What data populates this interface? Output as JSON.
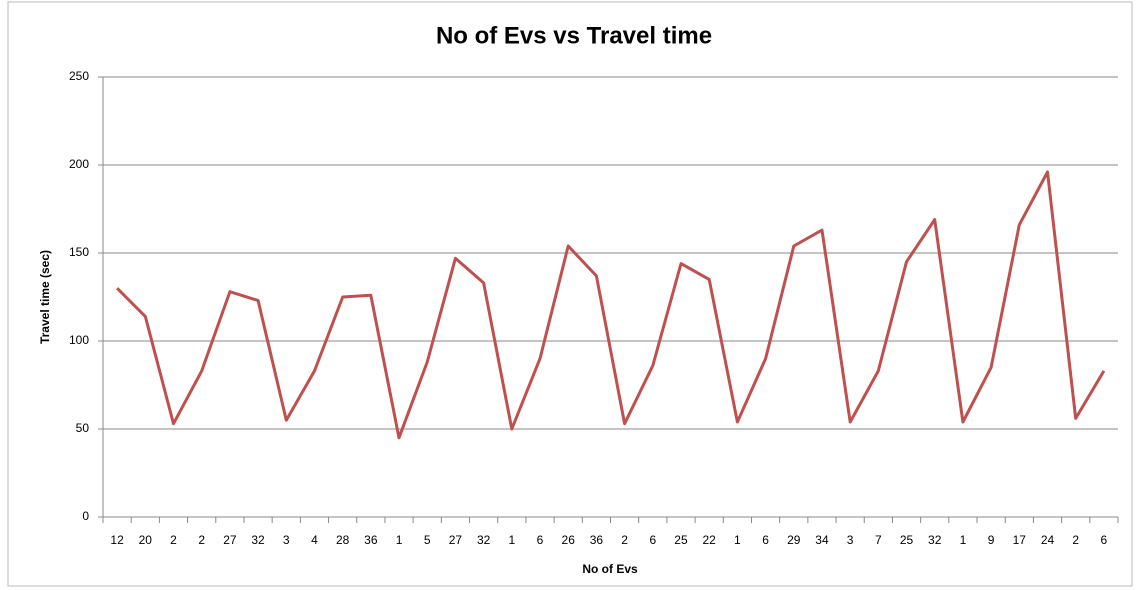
{
  "chart_data": {
    "type": "line",
    "title": "No of Evs vs Travel time",
    "x_label": "No of Evs",
    "y_label": "Travel time (sec)",
    "categories": [
      "12",
      "20",
      "2",
      "2",
      "27",
      "32",
      "3",
      "4",
      "28",
      "36",
      "1",
      "5",
      "27",
      "32",
      "1",
      "6",
      "26",
      "36",
      "2",
      "6",
      "25",
      "22",
      "1",
      "6",
      "29",
      "34",
      "3",
      "7",
      "25",
      "32",
      "1",
      "9",
      "17",
      "24",
      "2",
      "6"
    ],
    "series": [
      {
        "name": "Travel time",
        "color": "#c0504d",
        "values": [
          130,
          114,
          53,
          83,
          128,
          123,
          55,
          83,
          125,
          126,
          45,
          88,
          147,
          133,
          50,
          90,
          154,
          137,
          53,
          86,
          144,
          135,
          54,
          90,
          154,
          163,
          54,
          83,
          145,
          169,
          54,
          85,
          166,
          196,
          56,
          83
        ]
      }
    ],
    "ylim": [
      0,
      250
    ],
    "yticks": [
      0,
      50,
      100,
      150,
      200,
      250
    ],
    "grid": true
  }
}
